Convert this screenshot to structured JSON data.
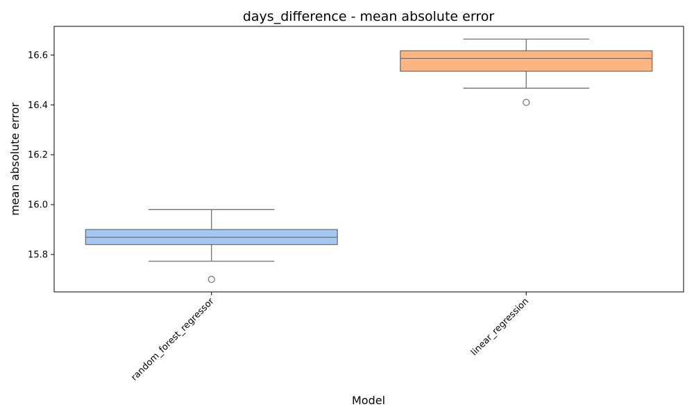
{
  "chart_data": {
    "type": "box",
    "title": "days_difference - mean absolute error",
    "xlabel": "Model",
    "ylabel": "mean absolute error",
    "ylim": [
      15.65,
      16.715
    ],
    "yticks": [
      15.8,
      16.0,
      16.2,
      16.4,
      16.6
    ],
    "ytick_labels": [
      "15.8",
      "16.0",
      "16.2",
      "16.4",
      "16.6"
    ],
    "grid": false,
    "categories": [
      "random_forest_regressor",
      "linear_regression"
    ],
    "boxes": [
      {
        "category": "random_forest_regressor",
        "whisker_low": 15.773,
        "q1": 15.84,
        "median": 15.869,
        "q3": 15.9,
        "whisker_high": 15.98,
        "outliers": [
          15.7
        ],
        "color": "#a1c9f4"
      },
      {
        "category": "linear_regression",
        "whisker_low": 16.467,
        "q1": 16.535,
        "median": 16.586,
        "q3": 16.617,
        "whisker_high": 16.664,
        "outliers": [
          16.41
        ],
        "color": "#ffb482"
      }
    ],
    "edge_color": "#6e6e6e"
  }
}
